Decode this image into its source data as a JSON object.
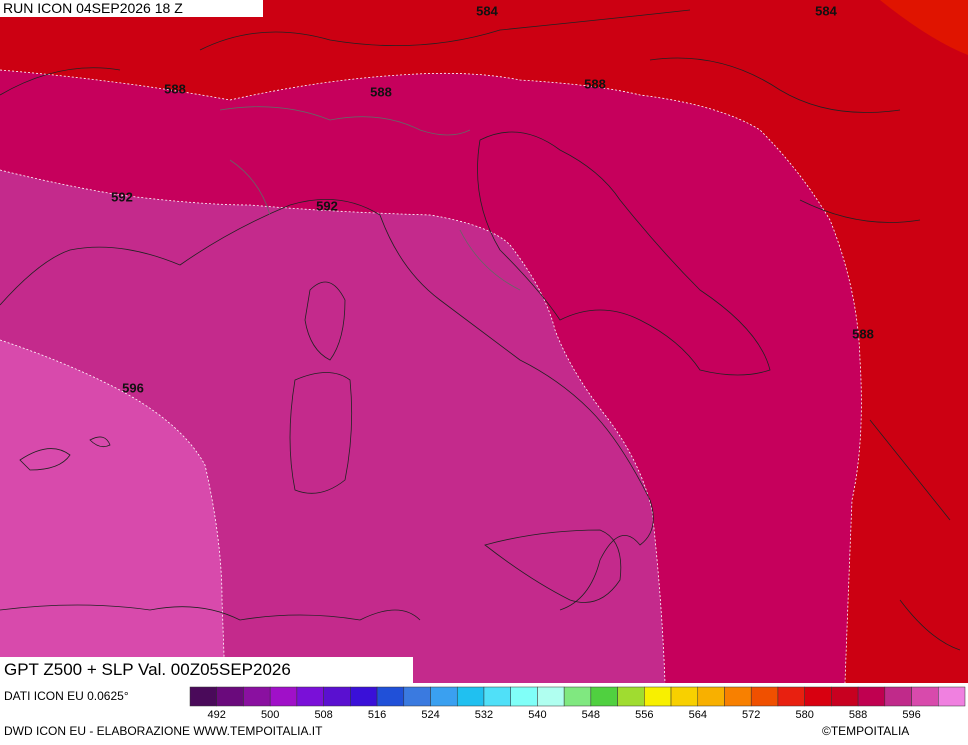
{
  "header": {
    "run": "RUN ICON 04SEP2026 18 Z",
    "title": "GPT Z500 + SLP Val. 00Z05SEP2026"
  },
  "map": {
    "contour_labels": [
      "584",
      "584",
      "588",
      "588",
      "588",
      "588",
      "592",
      "592",
      "596"
    ]
  },
  "footer": {
    "source": "DATI ICON EU 0.0625°",
    "credit": "DWD ICON EU - ELABORAZIONE WWW.TEMPOITALIA.IT",
    "copyright": "©TEMPOITALIA"
  },
  "colorbar": {
    "ticks": [
      492,
      500,
      508,
      516,
      524,
      532,
      540,
      548,
      556,
      564,
      572,
      580,
      588,
      596
    ]
  }
}
